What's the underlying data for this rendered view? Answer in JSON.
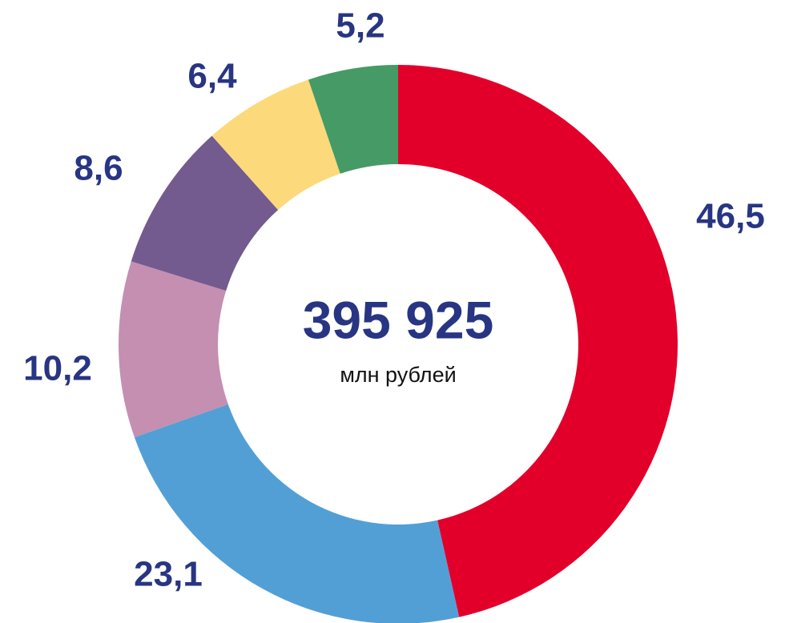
{
  "chart_data": {
    "type": "donut",
    "center_value": "395 925",
    "center_unit": "млн рублей",
    "values": [
      46.5,
      23.1,
      10.2,
      8.6,
      6.4,
      5.2
    ],
    "value_labels": [
      "46,5",
      "23,1",
      "10,2",
      "8,6",
      "6,4",
      "5,2"
    ],
    "colors": [
      "#e2002b",
      "#529fd6",
      "#c48fb0",
      "#735a8f",
      "#fcd97a",
      "#469a66"
    ]
  }
}
